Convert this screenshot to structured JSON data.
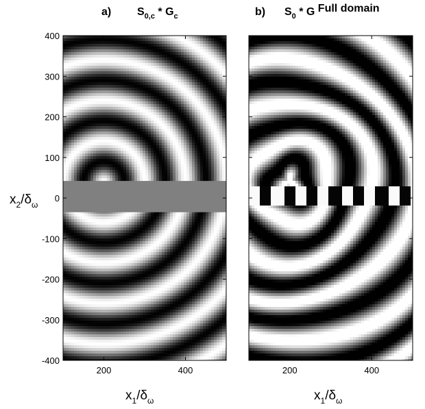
{
  "chart_data": [
    {
      "type": "heatmap",
      "panel_label": "a)",
      "title": {
        "base": "S",
        "sub": "0,c",
        "mid": " * G",
        "sub2": "c",
        "tail": ""
      },
      "xlabel": {
        "base": "x",
        "sub": "1",
        "slash": "/δ",
        "sub2": "ω"
      },
      "ylabel": {
        "base": "x",
        "sub": "2",
        "slash": "/δ",
        "sub2": "ω"
      },
      "xlim": [
        100,
        500
      ],
      "ylim": [
        -400,
        400
      ],
      "xticks": [
        "200",
        "400"
      ],
      "yticks": [
        "400",
        "300",
        "200",
        "100",
        "0",
        "-100",
        "-200",
        "-300",
        "-400"
      ],
      "colormap": "gray",
      "source": {
        "x": 200,
        "y": 40
      },
      "masked_band": {
        "y": [
          -35,
          42
        ],
        "color": "#808080"
      }
    },
    {
      "type": "heatmap",
      "panel_label": "b)",
      "title": {
        "base": "S",
        "sub": "0",
        "mid": " * G",
        "sub2": "",
        "tail": " Full domain"
      },
      "xlabel": {
        "base": "x",
        "sub": "1",
        "slash": "/δ",
        "sub2": "ω"
      },
      "xlim": [
        100,
        500
      ],
      "ylim": [
        -400,
        400
      ],
      "xticks": [
        "200",
        "400"
      ],
      "colormap": "gray",
      "source": {
        "x": 200,
        "y": 40
      }
    }
  ]
}
